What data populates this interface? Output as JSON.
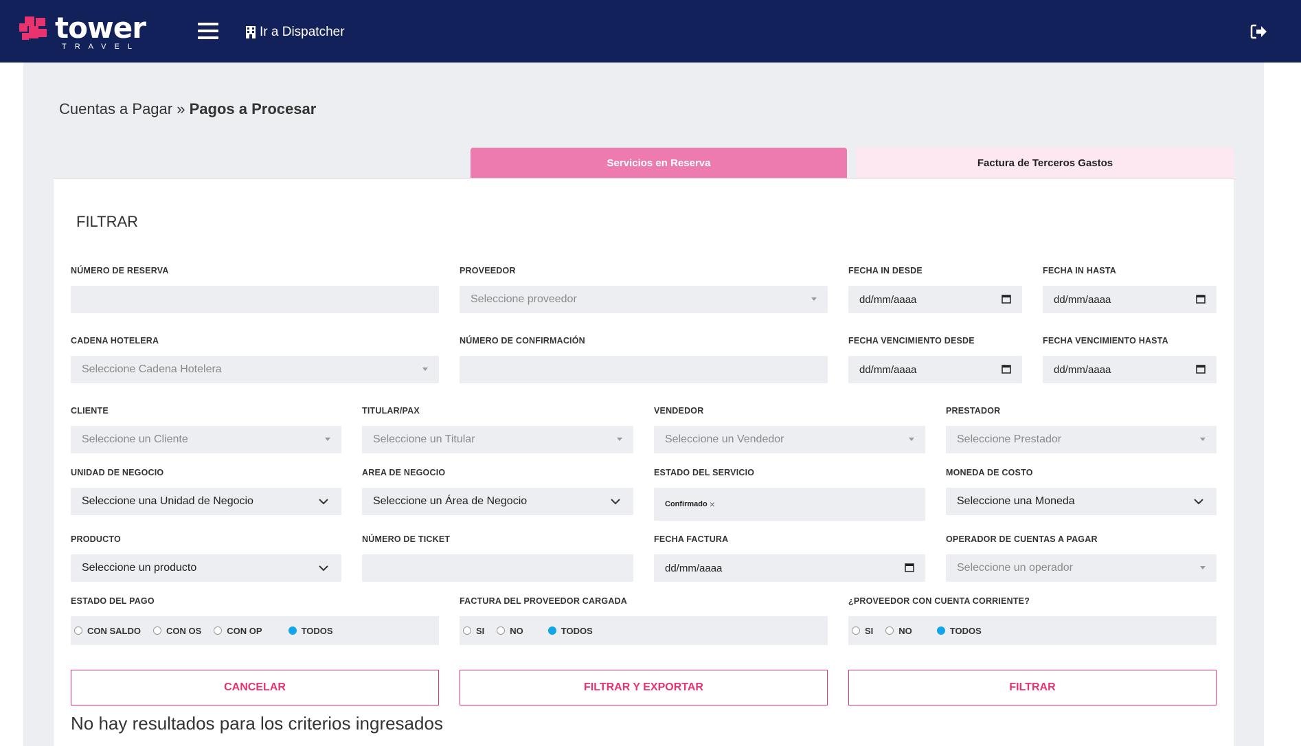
{
  "header": {
    "logo_text": "tower",
    "logo_sub": "TRAVEL",
    "dispatcher_label": "Ir a Dispatcher"
  },
  "breadcrumb": {
    "parent": "Cuentas a Pagar",
    "separator": "»",
    "current": "Pagos a Procesar"
  },
  "tabs": {
    "active": "Servicios en Reserva",
    "inactive": "Factura de Terceros Gastos"
  },
  "filter_title": "FILTRAR",
  "fields": {
    "numero_reserva": {
      "label": "NÚMERO DE RESERVA",
      "value": ""
    },
    "proveedor": {
      "label": "PROVEEDOR",
      "placeholder": "Seleccione proveedor"
    },
    "fecha_in_desde": {
      "label": "FECHA IN DESDE",
      "value": "dd/mm/aaaa"
    },
    "fecha_in_hasta": {
      "label": "FECHA IN HASTA",
      "value": "dd/mm/aaaa"
    },
    "cadena_hotelera": {
      "label": "CADENA HOTELERA",
      "placeholder": "Seleccione Cadena Hotelera"
    },
    "numero_confirmacion": {
      "label": "NÚMERO DE CONFIRMACIÓN",
      "value": ""
    },
    "fecha_venc_desde": {
      "label": "FECHA VENCIMIENTO DESDE",
      "value": "dd/mm/aaaa"
    },
    "fecha_venc_hasta": {
      "label": "FECHA VENCIMIENTO HASTA",
      "value": "dd/mm/aaaa"
    },
    "cliente": {
      "label": "CLIENTE",
      "placeholder": "Seleccione un Cliente"
    },
    "titular": {
      "label": "TITULAR/PAX",
      "placeholder": "Seleccione un Titular"
    },
    "vendedor": {
      "label": "VENDEDOR",
      "placeholder": "Seleccione un Vendedor"
    },
    "prestador": {
      "label": "PRESTADOR",
      "placeholder": "Seleccione Prestador"
    },
    "unidad_negocio": {
      "label": "UNIDAD DE NEGOCIO",
      "value": "Seleccione una Unidad de Negocio"
    },
    "area_negocio": {
      "label": "AREA DE NEGOCIO",
      "value": "Seleccione un Área de Negocio"
    },
    "estado_servicio": {
      "label": "ESTADO DEL SERVICIO",
      "tag": "Confirmado"
    },
    "moneda_costo": {
      "label": "MONEDA DE COSTO",
      "value": "Seleccione una Moneda"
    },
    "producto": {
      "label": "PRODUCTO",
      "value": "Seleccione un producto"
    },
    "numero_ticket": {
      "label": "NÚMERO DE TICKET",
      "value": ""
    },
    "fecha_factura": {
      "label": "FECHA FACTURA",
      "value": "dd/mm/aaaa"
    },
    "operador": {
      "label": "OPERADOR DE CUENTAS A PAGAR",
      "placeholder": "Seleccione un operador"
    }
  },
  "radios": {
    "estado_pago": {
      "label": "ESTADO DEL PAGO",
      "options": [
        "CON SALDO",
        "CON OS",
        "CON OP",
        "TODOS"
      ],
      "selected": "TODOS"
    },
    "factura_proveedor": {
      "label": "FACTURA DEL PROVEEDOR CARGADA",
      "options": [
        "SI",
        "NO",
        "TODOS"
      ],
      "selected": "TODOS"
    },
    "cuenta_corriente": {
      "label": "¿PROVEEDOR CON CUENTA CORRIENTE?",
      "options": [
        "SI",
        "NO",
        "TODOS"
      ],
      "selected": "TODOS"
    }
  },
  "buttons": {
    "cancel": "CANCELAR",
    "filter_export": "FILTRAR Y EXPORTAR",
    "filter": "FILTRAR"
  },
  "no_results": "No hay resultados para los criterios ingresados",
  "colors": {
    "header_bg": "#13215a",
    "accent_pink": "#e8336f",
    "tab_active": "#ee7bb0",
    "tab_inactive": "#fde8f1",
    "radio_selected": "#11a6e8"
  }
}
